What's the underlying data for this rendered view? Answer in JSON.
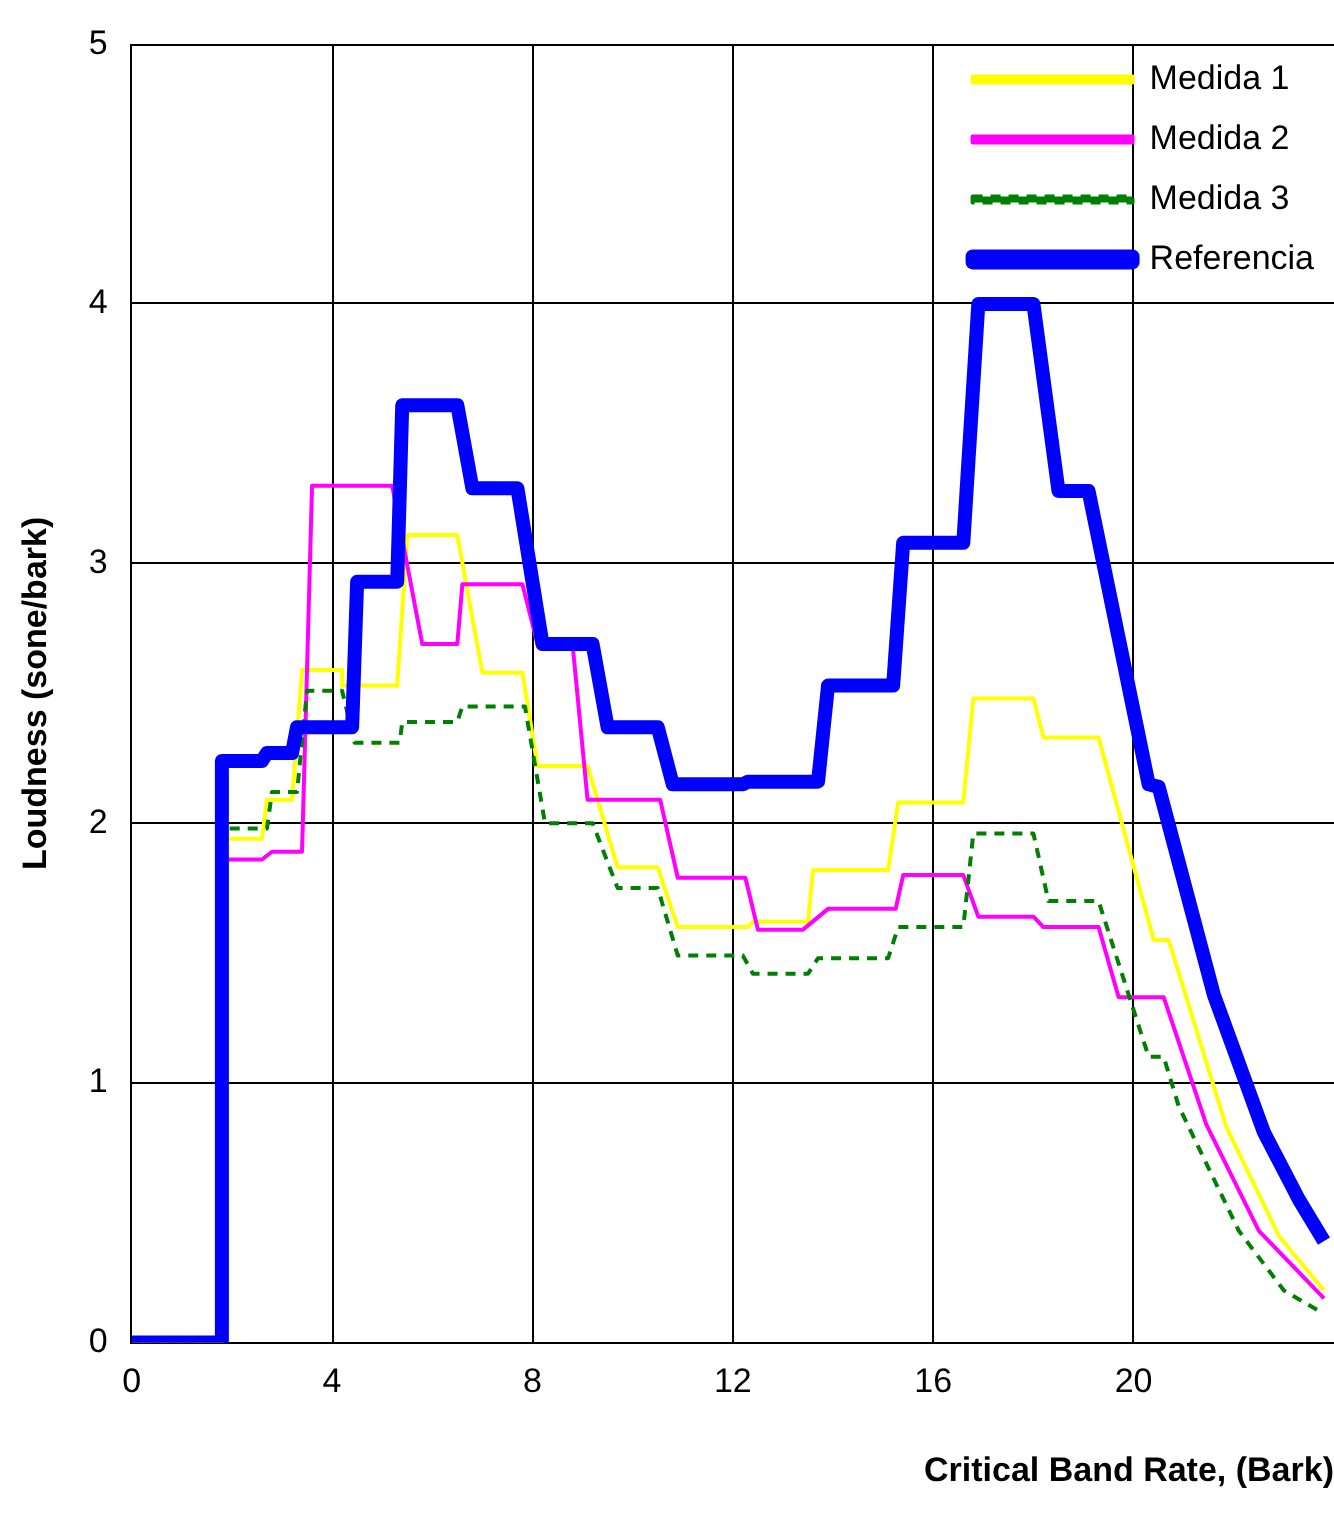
{
  "chart_data": {
    "type": "line",
    "xlabel": "Critical Band Rate, (Bark)",
    "ylabel": "Loudness (sone/bark)",
    "xlim": [
      0,
      24
    ],
    "ylim": [
      0,
      5
    ],
    "xticks": [
      0,
      4,
      8,
      12,
      16,
      20
    ],
    "yticks": [
      0,
      1,
      2,
      3,
      4,
      5
    ],
    "grid": true,
    "legend": "top right",
    "marker": "none",
    "series": [
      {
        "name": "Medida 1",
        "color": "#ffff00",
        "line_style": "solid",
        "x": [
          0,
          1.8,
          1.8,
          2.6,
          2.7,
          3.2,
          3.4,
          4.2,
          4.2,
          5.3,
          5.5,
          6.5,
          7.0,
          7.8,
          8.1,
          9.1,
          9.7,
          10.5,
          10.9,
          12.3,
          12.4,
          13.5,
          13.6,
          15.1,
          15.3,
          16.6,
          16.8,
          18.0,
          18.2,
          19.3,
          20.4,
          20.7,
          21.85,
          22.9,
          23.8
        ],
        "values": [
          0,
          0,
          1.94,
          1.94,
          2.09,
          2.09,
          2.59,
          2.59,
          2.53,
          2.53,
          3.11,
          3.11,
          2.58,
          2.58,
          2.22,
          2.22,
          1.83,
          1.83,
          1.6,
          1.6,
          1.62,
          1.62,
          1.82,
          1.82,
          2.08,
          2.08,
          2.48,
          2.48,
          2.33,
          2.33,
          1.55,
          1.55,
          0.83,
          0.41,
          0.2
        ]
      },
      {
        "name": "Medida 2",
        "color": "#ff00ff",
        "line_style": "solid",
        "x": [
          0,
          1.8,
          1.8,
          2.6,
          2.8,
          3.4,
          3.6,
          5.2,
          5.8,
          6.5,
          6.6,
          7.8,
          8.1,
          8.8,
          9.1,
          10.55,
          10.9,
          12.25,
          12.5,
          13.4,
          13.9,
          15.25,
          15.4,
          16.6,
          16.9,
          18.0,
          18.2,
          19.3,
          19.7,
          20.6,
          21.45,
          22.5,
          23.8
        ],
        "values": [
          0,
          0,
          1.86,
          1.86,
          1.89,
          1.89,
          3.3,
          3.3,
          2.69,
          2.69,
          2.92,
          2.92,
          2.69,
          2.69,
          2.09,
          2.09,
          1.79,
          1.79,
          1.59,
          1.59,
          1.67,
          1.67,
          1.8,
          1.8,
          1.64,
          1.64,
          1.6,
          1.6,
          1.33,
          1.33,
          0.84,
          0.43,
          0.17
        ]
      },
      {
        "name": "Medida 3",
        "color": "#008000",
        "line_style": "dashed",
        "x": [
          0,
          1.8,
          1.8,
          2.7,
          2.8,
          3.3,
          3.5,
          4.2,
          4.45,
          5.35,
          5.4,
          6.5,
          6.6,
          7.85,
          8.25,
          9.2,
          9.7,
          10.5,
          10.9,
          12.2,
          12.4,
          13.5,
          13.7,
          15.1,
          15.3,
          16.6,
          16.8,
          18.0,
          18.3,
          19.3,
          20.3,
          20.6,
          20.9,
          22.1,
          23.0,
          23.8
        ],
        "values": [
          0,
          0,
          1.98,
          1.98,
          2.12,
          2.12,
          2.51,
          2.51,
          2.31,
          2.31,
          2.39,
          2.39,
          2.45,
          2.45,
          2.0,
          2.0,
          1.75,
          1.75,
          1.49,
          1.49,
          1.42,
          1.42,
          1.48,
          1.48,
          1.6,
          1.6,
          1.96,
          1.96,
          1.7,
          1.7,
          1.1,
          1.1,
          0.91,
          0.43,
          0.2,
          0.11
        ]
      },
      {
        "name": "Referencia",
        "color": "#0000ff",
        "line_style": "solid",
        "x": [
          0,
          1.8,
          1.8,
          2.6,
          2.7,
          3.2,
          3.3,
          4.4,
          4.5,
          5.3,
          5.4,
          6.5,
          6.8,
          7.7,
          8.2,
          9.2,
          9.5,
          10.5,
          10.8,
          12.2,
          12.3,
          13.7,
          13.9,
          15.2,
          15.4,
          16.6,
          16.9,
          18.0,
          18.5,
          19.1,
          20.3,
          20.5,
          21.6,
          22.6,
          23.3,
          23.8
        ],
        "values": [
          0,
          0,
          2.24,
          2.24,
          2.27,
          2.27,
          2.37,
          2.37,
          2.93,
          2.93,
          3.61,
          3.61,
          3.29,
          3.29,
          2.69,
          2.69,
          2.37,
          2.37,
          2.15,
          2.15,
          2.16,
          2.16,
          2.53,
          2.53,
          3.08,
          3.08,
          4.0,
          4.0,
          3.28,
          3.28,
          2.15,
          2.14,
          1.34,
          0.81,
          0.55,
          0.39
        ]
      }
    ]
  }
}
